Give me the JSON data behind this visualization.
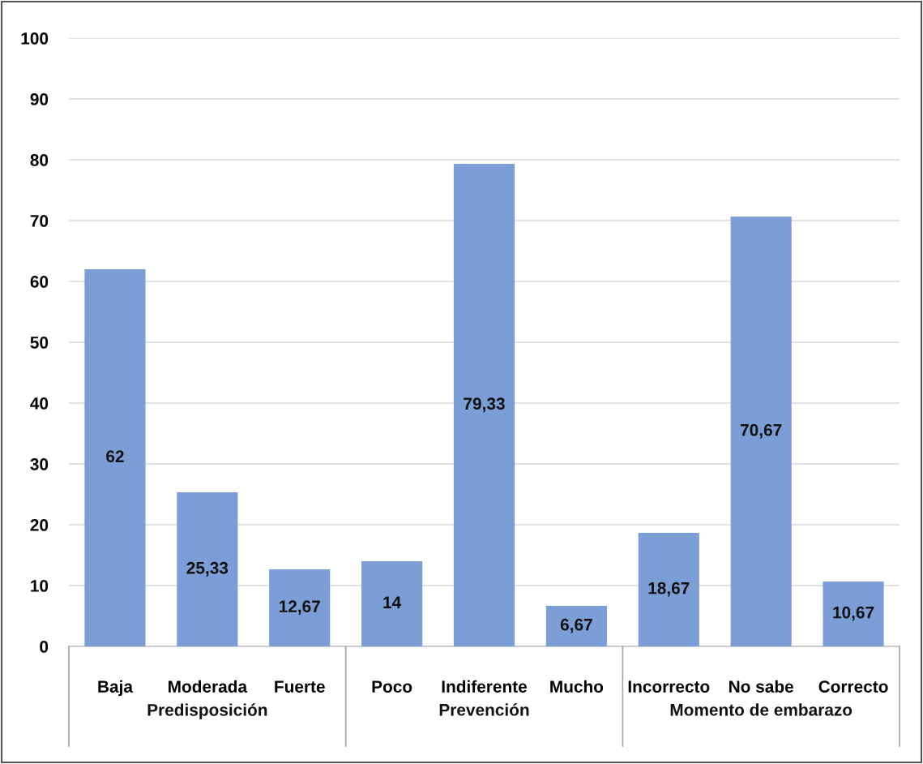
{
  "chart_data": {
    "type": "bar",
    "categories": [
      "Baja",
      "Moderada",
      "Fuerte",
      "Poco",
      "Indiferente",
      "Mucho",
      "Incorrecto",
      "No sabe",
      "Correcto"
    ],
    "values": [
      62,
      25.33,
      12.67,
      14,
      79.33,
      6.67,
      18.67,
      70.67,
      10.67
    ],
    "value_labels": [
      "62",
      "25,33",
      "12,67",
      "14",
      "79,33",
      "6,67",
      "18,67",
      "70,67",
      "10,67"
    ],
    "color": "#7b9ed6",
    "ylim": [
      0,
      100
    ],
    "yticks": [
      0,
      10,
      20,
      30,
      40,
      50,
      60,
      70,
      80,
      90,
      100
    ],
    "grid": "y",
    "annotations": [
      "Predisposición",
      "Prevención",
      "Momento de embarazo"
    ]
  }
}
